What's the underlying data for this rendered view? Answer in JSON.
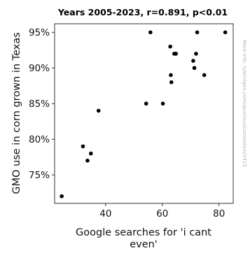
{
  "chart_data": {
    "type": "scatter",
    "title": "Years 2005-2023, r=0.891, p<0.01",
    "xlabel": [
      "Google searches for 'i cant",
      "even'"
    ],
    "ylabel": "GMO use in corn grown in Texas",
    "watermark": "More info: tylervigen.com/spurious/correlation/2415",
    "xlim": [
      22,
      85
    ],
    "ylim": [
      71,
      96.2
    ],
    "x_ticks": [
      {
        "value": 40,
        "label": "40"
      },
      {
        "value": 60,
        "label": "60"
      },
      {
        "value": 80,
        "label": "80"
      }
    ],
    "y_ticks": [
      {
        "value": 75,
        "label": "75%"
      },
      {
        "value": 80,
        "label": "80%"
      },
      {
        "value": 85,
        "label": "85%"
      },
      {
        "value": 90,
        "label": "90%"
      },
      {
        "value": 95,
        "label": "95%"
      }
    ],
    "point_color": "#000000",
    "grid": false,
    "points": [
      {
        "x": 24.5,
        "y": 72
      },
      {
        "x": 32.0,
        "y": 79
      },
      {
        "x": 33.6,
        "y": 77
      },
      {
        "x": 34.8,
        "y": 78
      },
      {
        "x": 37.5,
        "y": 84
      },
      {
        "x": 54.3,
        "y": 85
      },
      {
        "x": 55.8,
        "y": 95
      },
      {
        "x": 60.2,
        "y": 85
      },
      {
        "x": 62.8,
        "y": 93
      },
      {
        "x": 63.0,
        "y": 89
      },
      {
        "x": 63.2,
        "y": 88
      },
      {
        "x": 64.2,
        "y": 92
      },
      {
        "x": 64.8,
        "y": 92
      },
      {
        "x": 70.9,
        "y": 91
      },
      {
        "x": 71.3,
        "y": 90
      },
      {
        "x": 71.9,
        "y": 92
      },
      {
        "x": 72.3,
        "y": 95
      },
      {
        "x": 74.8,
        "y": 89
      },
      {
        "x": 82.2,
        "y": 95
      }
    ]
  }
}
